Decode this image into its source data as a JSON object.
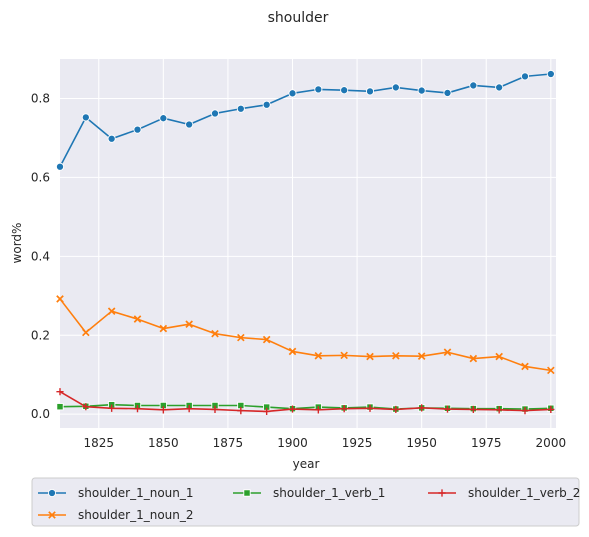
{
  "chart_data": {
    "type": "line",
    "title": "shoulder",
    "xlabel": "year",
    "ylabel": "word%",
    "xlim": [
      1810,
      2002
    ],
    "ylim": [
      -0.035,
      0.9
    ],
    "xticks": [
      1825,
      1850,
      1875,
      1900,
      1925,
      1950,
      1975,
      2000
    ],
    "yticks": [
      0.0,
      0.2,
      0.4,
      0.6,
      0.8
    ],
    "ytick_labels": [
      "0.0",
      "0.2",
      "0.4",
      "0.6",
      "0.8"
    ],
    "x": [
      1810,
      1820,
      1830,
      1840,
      1850,
      1860,
      1870,
      1880,
      1890,
      1900,
      1910,
      1920,
      1930,
      1940,
      1950,
      1960,
      1970,
      1980,
      1990,
      2000
    ],
    "series": [
      {
        "name": "shoulder_1_noun_1",
        "color": "#1f77b4",
        "marker": "circle",
        "values": [
          0.627,
          0.752,
          0.698,
          0.721,
          0.75,
          0.734,
          0.762,
          0.774,
          0.784,
          0.813,
          0.823,
          0.821,
          0.818,
          0.828,
          0.82,
          0.814,
          0.833,
          0.828,
          0.856,
          0.862
        ]
      },
      {
        "name": "shoulder_1_noun_2",
        "color": "#ff7f0e",
        "marker": "x",
        "values": [
          0.292,
          0.207,
          0.261,
          0.241,
          0.217,
          0.228,
          0.204,
          0.194,
          0.189,
          0.159,
          0.148,
          0.149,
          0.146,
          0.148,
          0.147,
          0.157,
          0.141,
          0.146,
          0.121,
          0.111
        ]
      },
      {
        "name": "shoulder_1_verb_1",
        "color": "#2ca02c",
        "marker": "square",
        "values": [
          0.019,
          0.02,
          0.024,
          0.022,
          0.022,
          0.022,
          0.022,
          0.022,
          0.018,
          0.014,
          0.018,
          0.016,
          0.018,
          0.013,
          0.016,
          0.015,
          0.014,
          0.014,
          0.013,
          0.015
        ]
      },
      {
        "name": "shoulder_1_verb_2",
        "color": "#d62728",
        "marker": "plus",
        "values": [
          0.057,
          0.019,
          0.015,
          0.014,
          0.011,
          0.014,
          0.012,
          0.009,
          0.007,
          0.013,
          0.011,
          0.014,
          0.015,
          0.012,
          0.016,
          0.013,
          0.012,
          0.011,
          0.009,
          0.012
        ]
      }
    ],
    "grid": true,
    "legend_position": "bottom"
  }
}
